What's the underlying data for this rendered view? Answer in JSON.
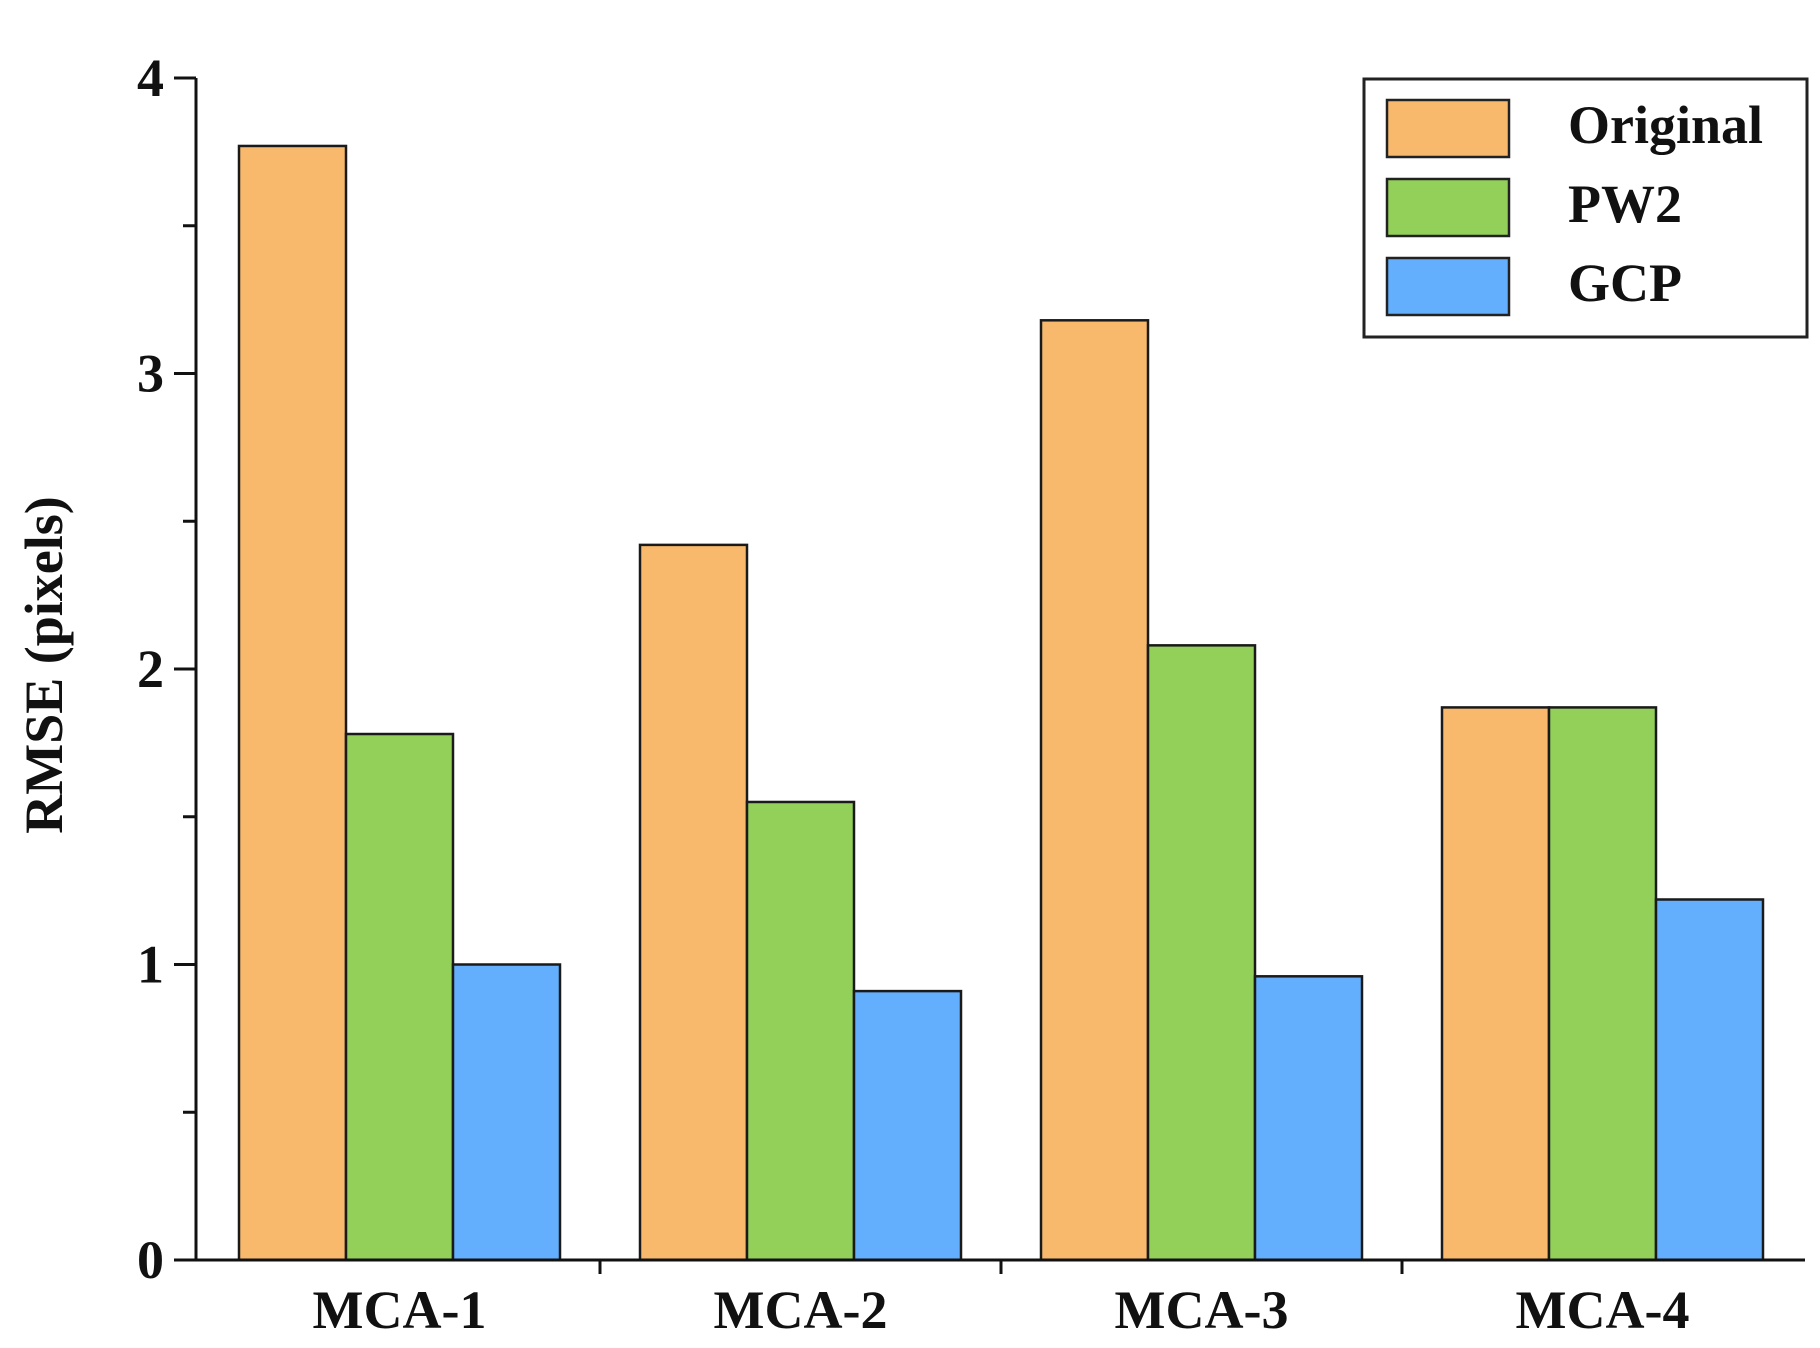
{
  "chart_data": {
    "type": "bar",
    "title": "",
    "xlabel": "",
    "ylabel": "RMSE (pixels)",
    "ylim": [
      0,
      4
    ],
    "yticks": [
      "0",
      "1",
      "2",
      "3",
      "4"
    ],
    "categories": [
      "MCA-1",
      "MCA-2",
      "MCA-3",
      "MCA-4"
    ],
    "series": [
      {
        "name": "Original",
        "color": "#F8B96C",
        "values": [
          3.77,
          2.42,
          3.18,
          1.87
        ]
      },
      {
        "name": "PW2",
        "color": "#92D05A",
        "values": [
          1.78,
          1.55,
          2.08,
          1.87
        ]
      },
      {
        "name": "GCP",
        "color": "#63AFFD",
        "values": [
          1.0,
          0.91,
          0.96,
          1.22
        ]
      }
    ],
    "legend_position": "top-right",
    "grid": false
  }
}
